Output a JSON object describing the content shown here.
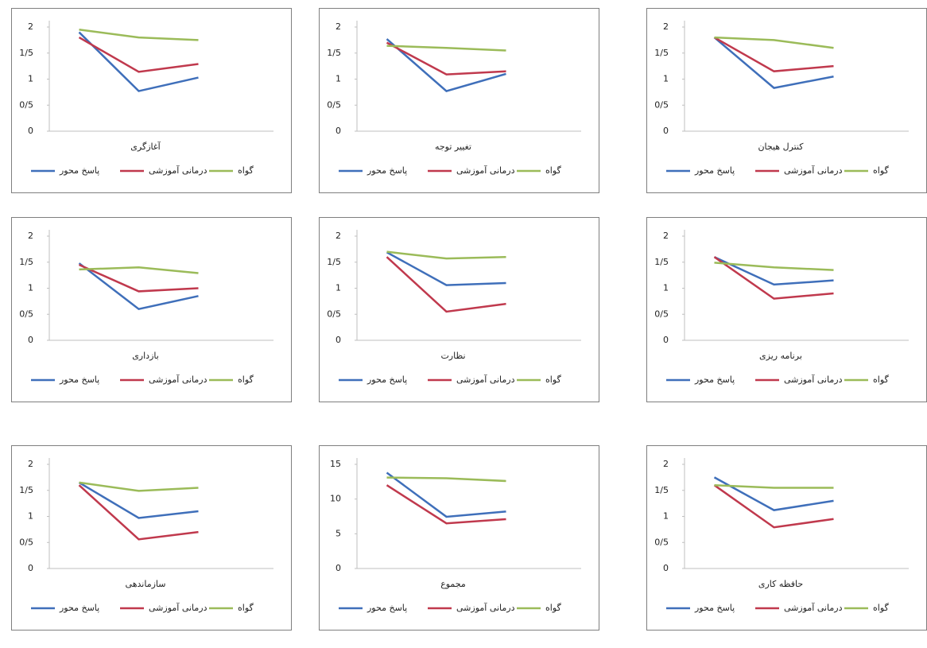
{
  "chart_data": [
    {
      "type": "line",
      "x_label": "آغازگری",
      "categories": [
        null,
        null,
        null
      ],
      "ylim": [
        0,
        2
      ],
      "yticks": [
        0,
        {
          "value": 0.5,
          "label": "0/5"
        },
        1,
        {
          "value": 1.5,
          "label": "1/5"
        },
        2
      ],
      "series": [
        {
          "name": "پاسخ محور",
          "color": "#3f6fba",
          "values": [
            1.9,
            0.77,
            1.03
          ]
        },
        {
          "name": "درمانی آموزشی",
          "color": "#c0394d",
          "values": [
            1.8,
            1.14,
            1.29
          ]
        },
        {
          "name": "گواه",
          "color": "#9bbb59",
          "values": [
            1.95,
            1.8,
            1.75
          ]
        }
      ]
    },
    {
      "type": "line",
      "x_label": "تغییر توجه",
      "categories": [
        null,
        null,
        null
      ],
      "ylim": [
        0,
        2
      ],
      "yticks": [
        0,
        {
          "value": 0.5,
          "label": "0/5"
        },
        1,
        {
          "value": 1.5,
          "label": "1/5"
        },
        2
      ],
      "series": [
        {
          "name": "پاسخ محور",
          "color": "#3f6fba",
          "values": [
            1.77,
            0.77,
            1.1
          ]
        },
        {
          "name": "درمانی آموزشی",
          "color": "#c0394d",
          "values": [
            1.7,
            1.09,
            1.15
          ]
        },
        {
          "name": "گواه",
          "color": "#9bbb59",
          "values": [
            1.64,
            1.6,
            1.55
          ]
        }
      ]
    },
    {
      "type": "line",
      "x_label": "کنترل هیجان",
      "categories": [
        null,
        null,
        null
      ],
      "ylim": [
        0,
        2
      ],
      "yticks": [
        0,
        {
          "value": 0.5,
          "label": "0/5"
        },
        1,
        {
          "value": 1.5,
          "label": "1/5"
        },
        2
      ],
      "series": [
        {
          "name": "پاسخ محور",
          "color": "#3f6fba",
          "values": [
            1.8,
            0.83,
            1.05
          ]
        },
        {
          "name": "درمانی آموزشی",
          "color": "#c0394d",
          "values": [
            1.8,
            1.15,
            1.25
          ]
        },
        {
          "name": "گواه",
          "color": "#9bbb59",
          "values": [
            1.8,
            1.75,
            1.6
          ]
        }
      ]
    },
    {
      "type": "line",
      "x_label": "بازداری",
      "categories": [
        null,
        null,
        null
      ],
      "ylim": [
        0,
        2
      ],
      "yticks": [
        0,
        {
          "value": 0.5,
          "label": "0/5"
        },
        1,
        {
          "value": 1.5,
          "label": "1/5"
        },
        2
      ],
      "series": [
        {
          "name": "پاسخ محور",
          "color": "#3f6fba",
          "values": [
            1.48,
            0.6,
            0.85
          ]
        },
        {
          "name": "درمانی آموزشی",
          "color": "#c0394d",
          "values": [
            1.45,
            0.94,
            1.0
          ]
        },
        {
          "name": "گواه",
          "color": "#9bbb59",
          "values": [
            1.36,
            1.4,
            1.29
          ]
        }
      ]
    },
    {
      "type": "line",
      "x_label": "نظارت",
      "categories": [
        null,
        null,
        null
      ],
      "ylim": [
        0,
        2
      ],
      "yticks": [
        0,
        {
          "value": 0.5,
          "label": "0/5"
        },
        1,
        {
          "value": 1.5,
          "label": "1/5"
        },
        2
      ],
      "series": [
        {
          "name": "پاسخ محور",
          "color": "#3f6fba",
          "values": [
            1.69,
            1.06,
            1.1
          ]
        },
        {
          "name": "درمانی آموزشی",
          "color": "#c0394d",
          "values": [
            1.6,
            0.55,
            0.7
          ]
        },
        {
          "name": "گواه",
          "color": "#9bbb59",
          "values": [
            1.7,
            1.57,
            1.6
          ]
        }
      ]
    },
    {
      "type": "line",
      "x_label": "برنامه ریزی",
      "categories": [
        null,
        null,
        null
      ],
      "ylim": [
        0,
        2
      ],
      "yticks": [
        0,
        {
          "value": 0.5,
          "label": "0/5"
        },
        1,
        {
          "value": 1.5,
          "label": "1/5"
        },
        2
      ],
      "series": [
        {
          "name": "پاسخ محور",
          "color": "#3f6fba",
          "values": [
            1.6,
            1.07,
            1.15
          ]
        },
        {
          "name": "درمانی آموزشی",
          "color": "#c0394d",
          "values": [
            1.6,
            0.8,
            0.9
          ]
        },
        {
          "name": "گواه",
          "color": "#9bbb59",
          "values": [
            1.49,
            1.4,
            1.35
          ]
        }
      ]
    },
    {
      "type": "line",
      "x_label": "سازماندهی",
      "categories": [
        null,
        null,
        null
      ],
      "ylim": [
        0,
        2
      ],
      "yticks": [
        0,
        {
          "value": 0.5,
          "label": "0/5"
        },
        1,
        {
          "value": 1.5,
          "label": "1/5"
        },
        2
      ],
      "series": [
        {
          "name": "پاسخ محور",
          "color": "#3f6fba",
          "values": [
            1.65,
            0.97,
            1.1
          ]
        },
        {
          "name": "درمانی آموزشی",
          "color": "#c0394d",
          "values": [
            1.6,
            0.56,
            0.7
          ]
        },
        {
          "name": "گواه",
          "color": "#9bbb59",
          "values": [
            1.65,
            1.49,
            1.55
          ]
        }
      ]
    },
    {
      "type": "line",
      "x_label": "مجموع",
      "categories": [
        null,
        null,
        null
      ],
      "ylim": [
        0,
        15
      ],
      "yticks": [
        0,
        5,
        10,
        15
      ],
      "series": [
        {
          "name": "پاسخ محور",
          "color": "#3f6fba",
          "values": [
            13.8,
            7.45,
            8.2
          ]
        },
        {
          "name": "درمانی آموزشی",
          "color": "#c0394d",
          "values": [
            12,
            6.5,
            7.1
          ]
        },
        {
          "name": "گواه",
          "color": "#9bbb59",
          "values": [
            13.1,
            13,
            12.6
          ]
        }
      ]
    },
    {
      "type": "line",
      "x_label": "حافظه کاری",
      "categories": [
        null,
        null,
        null
      ],
      "ylim": [
        0,
        2
      ],
      "yticks": [
        0,
        {
          "value": 0.5,
          "label": "0/5"
        },
        1,
        {
          "value": 1.5,
          "label": "1/5"
        },
        2
      ],
      "series": [
        {
          "name": "پاسخ محور",
          "color": "#3f6fba",
          "values": [
            1.75,
            1.12,
            1.3
          ]
        },
        {
          "name": "درمانی آموزشی",
          "color": "#c0394d",
          "values": [
            1.6,
            0.79,
            0.95
          ]
        },
        {
          "name": "گواه",
          "color": "#9bbb59",
          "values": [
            1.6,
            1.55,
            1.55
          ]
        }
      ]
    }
  ]
}
